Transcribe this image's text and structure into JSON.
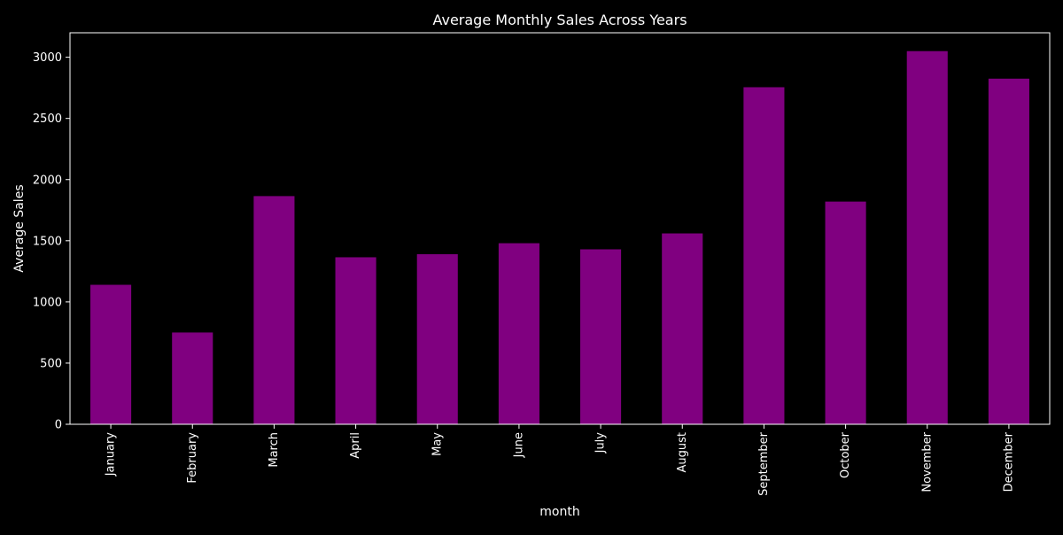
{
  "chart_data": {
    "type": "bar",
    "title": "Average Monthly Sales Across Years",
    "xlabel": "month",
    "ylabel": "Average Sales",
    "categories": [
      "January",
      "February",
      "March",
      "April",
      "May",
      "June",
      "July",
      "August",
      "September",
      "October",
      "November",
      "December"
    ],
    "values": [
      1140,
      750,
      1865,
      1365,
      1390,
      1480,
      1430,
      1560,
      2755,
      1820,
      3050,
      2825
    ],
    "ylim": [
      0,
      3200
    ],
    "yticks": [
      0,
      500,
      1000,
      1500,
      2000,
      2500,
      3000
    ],
    "grid": false,
    "legend": "none",
    "colors": {
      "background": "#000000",
      "bar": "#800080",
      "axes": "#ffffff",
      "text": "#ffffff"
    }
  }
}
